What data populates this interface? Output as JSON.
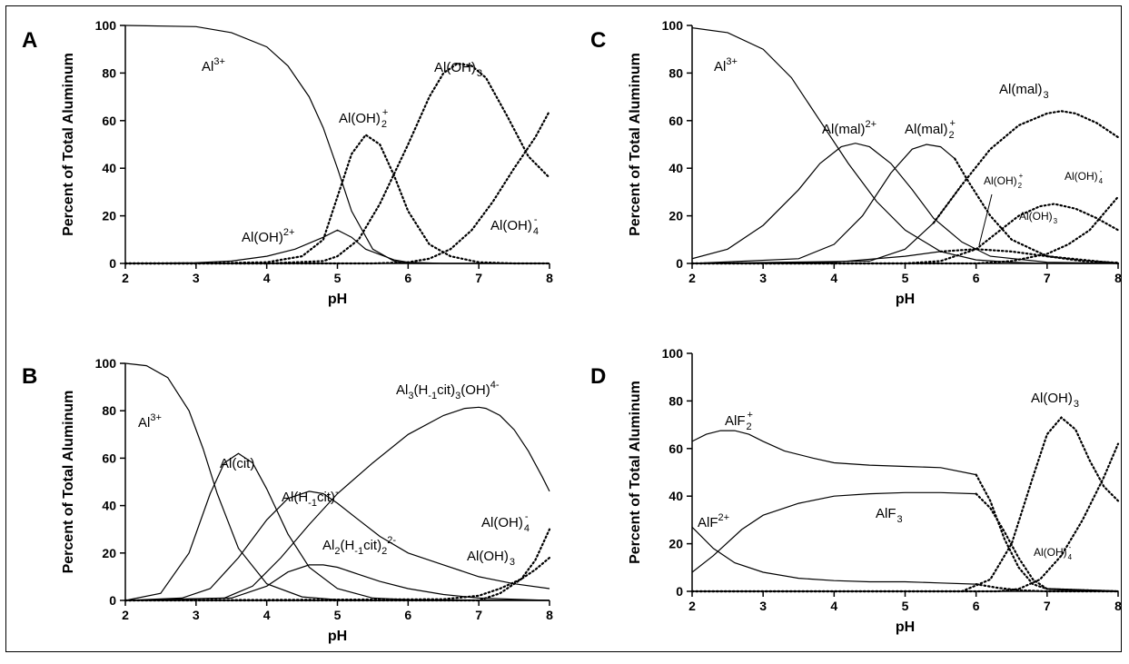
{
  "chart_data": [
    {
      "panel": "A",
      "type": "line",
      "xlabel": "pH",
      "ylabel": "Percent of Total Aluminum",
      "xlim": [
        2,
        8
      ],
      "ylim": [
        0,
        100
      ],
      "xticks": [
        "2",
        "3",
        "4",
        "5",
        "6",
        "7",
        "8"
      ],
      "yticks": [
        "0",
        "20",
        "40",
        "60",
        "80",
        "100"
      ],
      "series": [
        {
          "key": "al3",
          "x": [
            2,
            3,
            3.5,
            4,
            4.3,
            4.6,
            4.8,
            5,
            5.2,
            5.5,
            5.8,
            6,
            6.5,
            7,
            8
          ],
          "y": [
            100,
            99.5,
            97,
            91,
            83,
            70,
            57,
            40,
            22,
            6,
            1,
            0,
            0,
            0,
            0
          ],
          "style": "solid"
        },
        {
          "key": "aloh2",
          "x": [
            2,
            3,
            3.5,
            4,
            4.4,
            4.8,
            5,
            5.2,
            5.4,
            5.8,
            6,
            6.5,
            7,
            8
          ],
          "y": [
            0,
            0.3,
            1,
            3,
            6,
            11,
            14,
            11,
            6,
            1.5,
            0.5,
            0,
            0,
            0
          ],
          "style": "solid"
        },
        {
          "key": "alohp",
          "x": [
            2,
            3,
            4,
            4.5,
            4.8,
            5,
            5.2,
            5.4,
            5.6,
            5.8,
            6,
            6.3,
            6.6,
            7,
            7.5,
            8
          ],
          "y": [
            0,
            0,
            0.5,
            3,
            10,
            28,
            46,
            54,
            50,
            37,
            22,
            8,
            3,
            0.5,
            0,
            0
          ],
          "style": "dotted"
        },
        {
          "key": "aloh3",
          "x": [
            2,
            4,
            4.8,
            5,
            5.3,
            5.6,
            6,
            6.3,
            6.5,
            6.7,
            6.9,
            7.1,
            7.4,
            7.7,
            8
          ],
          "y": [
            0,
            0,
            1,
            3,
            10,
            25,
            50,
            70,
            80,
            84,
            83,
            78,
            62,
            45,
            36
          ],
          "style": "dotted"
        },
        {
          "key": "aloh4",
          "x": [
            2,
            5.5,
            6,
            6.3,
            6.6,
            6.9,
            7.2,
            7.5,
            7.8,
            8
          ],
          "y": [
            0,
            0,
            0.5,
            2,
            6,
            14,
            26,
            40,
            53,
            64
          ],
          "style": "dotted"
        }
      ],
      "labels": {
        "al3": "Al",
        "al3_sup": "3+",
        "aloh3": "Al(OH)",
        "aloh3_sub": "3",
        "alohp": "Al(OH)",
        "alohp_sub": "2",
        "alohp_sup": "+",
        "aloh2": "Al(OH)",
        "aloh2_sup": "2+",
        "aloh4": "Al(OH)",
        "aloh4_sub": "4",
        "aloh4_sup": "-"
      }
    },
    {
      "panel": "B",
      "type": "line",
      "xlabel": "pH",
      "ylabel": "Percent of Total Aluminum",
      "xlim": [
        2,
        8
      ],
      "ylim": [
        0,
        100
      ],
      "xticks": [
        "2",
        "3",
        "4",
        "5",
        "6",
        "7",
        "8"
      ],
      "yticks": [
        "0",
        "20",
        "40",
        "60",
        "80",
        "100"
      ],
      "series": [
        {
          "key": "al3",
          "x": [
            2,
            2.3,
            2.6,
            2.9,
            3.1,
            3.3,
            3.6,
            4,
            4.5,
            5,
            5.5,
            8
          ],
          "y": [
            100,
            99,
            94,
            80,
            64,
            45,
            22,
            7,
            1.5,
            0.3,
            0,
            0
          ],
          "style": "solid"
        },
        {
          "key": "alcit",
          "x": [
            2,
            2.5,
            2.9,
            3.2,
            3.4,
            3.6,
            3.8,
            4,
            4.3,
            4.6,
            5,
            5.5,
            6,
            8
          ],
          "y": [
            0,
            3,
            20,
            45,
            58,
            62,
            58,
            47,
            28,
            14,
            5,
            1,
            0.3,
            0
          ],
          "style": "solid"
        },
        {
          "key": "alhcit",
          "x": [
            2,
            2.8,
            3.2,
            3.6,
            4,
            4.3,
            4.6,
            4.8,
            5,
            5.3,
            5.6,
            6,
            6.5,
            7,
            7.5,
            8
          ],
          "y": [
            0,
            1,
            5,
            18,
            34,
            43,
            46,
            45,
            41,
            34,
            27,
            20,
            15,
            10,
            7,
            5
          ],
          "style": "solid"
        },
        {
          "key": "al2hcit2",
          "x": [
            2,
            3.5,
            4,
            4.3,
            4.6,
            4.8,
            5,
            5.3,
            5.6,
            6,
            6.5,
            7,
            7.5,
            8
          ],
          "y": [
            0,
            1,
            6,
            12,
            15,
            15,
            14,
            11,
            8,
            5,
            2.5,
            1,
            0.5,
            0
          ],
          "style": "solid"
        },
        {
          "key": "al3hcit3",
          "x": [
            2,
            3.4,
            3.8,
            4.2,
            4.6,
            5,
            5.5,
            6,
            6.5,
            6.8,
            7,
            7.1,
            7.3,
            7.5,
            7.7,
            7.9,
            8
          ],
          "y": [
            0,
            1,
            6,
            18,
            32,
            45,
            58,
            70,
            78,
            81,
            81.5,
            81,
            78,
            72,
            63,
            52,
            46
          ],
          "style": "solid"
        },
        {
          "key": "aloh4",
          "x": [
            2,
            7,
            7.3,
            7.6,
            7.8,
            8
          ],
          "y": [
            0,
            0,
            3,
            9,
            17,
            30
          ],
          "style": "dotted"
        },
        {
          "key": "aloh3",
          "x": [
            2,
            6.5,
            7,
            7.3,
            7.6,
            7.8,
            8
          ],
          "y": [
            0,
            0.5,
            2,
            5,
            9,
            13,
            18
          ],
          "style": "dotted"
        }
      ],
      "labels": {
        "al3": "Al",
        "al3_sup": "3+",
        "alcit": "Al(cit)",
        "alhcit": "Al(H",
        "alhcit_sub": "-1",
        "alhcit_tail": "cit)",
        "alhcit_sup": "-",
        "al2hcit2": "Al",
        "al2hcit2_sub1": "2",
        "al2hcit2_mid": "(H",
        "al2hcit2_sub2": "-1",
        "al2hcit2_tail": "cit)",
        "al2hcit2_sub3": "2",
        "al2hcit2_sup": "2-",
        "al3hcit3": "Al",
        "al3hcit3_sub1": "3",
        "al3hcit3_mid": "(H",
        "al3hcit3_sub2": "-1",
        "al3hcit3_mid2": "cit)",
        "al3hcit3_sub3": "3",
        "al3hcit3_tail": "(OH)",
        "al3hcit3_sup": "4-",
        "aloh4": "Al(OH)",
        "aloh4_sub": "4",
        "aloh4_sup": "-",
        "aloh3": "Al(OH)",
        "aloh3_sub": "3"
      }
    },
    {
      "panel": "C",
      "type": "line",
      "xlabel": "pH",
      "ylabel": "Percent of Total Aluminum",
      "xlim": [
        2,
        8
      ],
      "ylim": [
        0,
        100
      ],
      "xticks": [
        "2",
        "3",
        "4",
        "5",
        "6",
        "7",
        "8"
      ],
      "yticks": [
        "0",
        "20",
        "40",
        "60",
        "80",
        "100"
      ],
      "series": [
        {
          "key": "al3",
          "x": [
            2,
            2.5,
            3,
            3.4,
            3.8,
            4.2,
            4.6,
            5,
            5.5,
            6,
            6.5,
            7,
            8
          ],
          "y": [
            99,
            97,
            90,
            78,
            60,
            42,
            26,
            14,
            5,
            1.5,
            0.5,
            0,
            0
          ],
          "style": "solid"
        },
        {
          "key": "almal",
          "x": [
            2,
            2.5,
            3,
            3.5,
            3.8,
            4.1,
            4.3,
            4.5,
            4.8,
            5.1,
            5.4,
            5.8,
            6.2,
            7,
            8
          ],
          "y": [
            2,
            6,
            16,
            31,
            42,
            49,
            50.5,
            49,
            42,
            31,
            19,
            9,
            3,
            0.5,
            0
          ],
          "style": "solid"
        },
        {
          "key": "almal2",
          "x": [
            2,
            3.5,
            4,
            4.4,
            4.8,
            5.1,
            5.3,
            5.5,
            5.7,
            5.9,
            6.2,
            6.5,
            7,
            8
          ],
          "y": [
            0,
            2,
            8,
            20,
            38,
            48,
            50,
            49,
            44,
            34,
            20,
            10,
            3,
            0
          ],
          "style": "dotted_tail",
          "solid_until": 5.8
        },
        {
          "key": "almal3",
          "x": [
            2,
            4.5,
            5,
            5.4,
            5.8,
            6.2,
            6.6,
            7,
            7.2,
            7.4,
            7.7,
            8
          ],
          "y": [
            0,
            1,
            6,
            17,
            33,
            48,
            58,
            63,
            64,
            63,
            59,
            53
          ],
          "style": "dotted_tail",
          "solid_until": 5.8
        },
        {
          "key": "alohp",
          "x": [
            2,
            4,
            5,
            5.5,
            6,
            6.5,
            7,
            7.5,
            8
          ],
          "y": [
            0,
            0.5,
            3,
            5,
            6,
            5,
            3,
            1,
            0.3
          ],
          "style": "dotted_tail",
          "solid_until": 5.8
        },
        {
          "key": "aloh3",
          "x": [
            2,
            5,
            5.5,
            6,
            6.3,
            6.6,
            6.9,
            7.1,
            7.4,
            7.7,
            8
          ],
          "y": [
            0,
            0,
            1,
            6,
            13,
            20,
            24,
            25,
            23,
            19,
            14
          ],
          "style": "dotted"
        },
        {
          "key": "aloh4",
          "x": [
            2,
            6,
            6.5,
            7,
            7.3,
            7.6,
            8
          ],
          "y": [
            0,
            0,
            1,
            4,
            8,
            14,
            28
          ],
          "style": "dotted"
        }
      ],
      "labels": {
        "al3": "Al",
        "al3_sup": "3+",
        "almal": "Al(mal)",
        "almal_sup": "2+",
        "almal2": "Al(mal)",
        "almal2_sub": "2",
        "almal2_sup": "+",
        "almal3": "Al(mal)",
        "almal3_sub": "3",
        "alohp": "Al(OH)",
        "alohp_sub": "2",
        "alohp_sup": "+",
        "aloh4": "Al(OH)",
        "aloh4_sub": "4",
        "aloh4_sup": "-",
        "aloh3": "Al(OH)",
        "aloh3_sub": "3"
      }
    },
    {
      "panel": "D",
      "type": "line",
      "xlabel": "pH",
      "ylabel": "Percent of Total Aluminum",
      "xlim": [
        2,
        8
      ],
      "ylim": [
        0,
        100
      ],
      "xticks": [
        "2",
        "3",
        "4",
        "5",
        "6",
        "7",
        "8"
      ],
      "yticks": [
        "0",
        "20",
        "40",
        "60",
        "80",
        "100"
      ],
      "series": [
        {
          "key": "alf2",
          "x": [
            2,
            2.2,
            2.4,
            2.6,
            2.8,
            3,
            3.3,
            3.7,
            4,
            4.5,
            5,
            5.5,
            6,
            6.2,
            6.4,
            6.6,
            6.8,
            7,
            8
          ],
          "y": [
            63,
            66,
            67.5,
            67.5,
            66,
            63,
            59,
            56,
            54,
            53,
            52.5,
            52,
            49,
            38,
            22,
            10,
            3,
            1,
            0
          ],
          "style": "dotted_tail",
          "solid_until": 6.05
        },
        {
          "key": "alf3",
          "x": [
            2,
            2.3,
            2.7,
            3,
            3.5,
            4,
            4.5,
            5,
            5.5,
            6,
            6.2,
            6.4,
            6.6,
            6.8,
            7,
            8
          ],
          "y": [
            8,
            15,
            26,
            32,
            37,
            40,
            41,
            41.5,
            41.5,
            41,
            35,
            25,
            14,
            5,
            1,
            0
          ],
          "style": "dotted_tail",
          "solid_until": 6.05
        },
        {
          "key": "alf2p",
          "x": [
            2,
            2.3,
            2.6,
            3,
            3.5,
            4,
            4.5,
            5,
            5.5,
            6,
            6.3,
            6.6,
            7,
            8
          ],
          "y": [
            27,
            18,
            12,
            8,
            5.5,
            4.5,
            4,
            4,
            3.5,
            3,
            1.5,
            0.5,
            0,
            0
          ],
          "style": "dotted_tail",
          "solid_until": 6.05
        },
        {
          "key": "aloh3",
          "x": [
            2,
            5.8,
            6.2,
            6.5,
            6.8,
            7,
            7.2,
            7.4,
            7.6,
            7.8,
            8
          ],
          "y": [
            0,
            0,
            5,
            20,
            48,
            66,
            73,
            68,
            55,
            44,
            38
          ],
          "style": "dotted"
        },
        {
          "key": "aloh4",
          "x": [
            2,
            6.3,
            6.6,
            6.9,
            7.2,
            7.5,
            7.8,
            8
          ],
          "y": [
            0,
            0,
            1,
            5,
            15,
            30,
            48,
            62
          ],
          "style": "dotted"
        }
      ],
      "labels": {
        "alf2": "AlF",
        "alf2_sub": "2",
        "alf2_sup": "+",
        "alf2p": "AlF",
        "alf2p_sup": "2+",
        "alf3": "AlF",
        "alf3_sub": "3",
        "aloh3": "Al(OH)",
        "aloh3_sub": "3",
        "aloh4": "Al(OH)",
        "aloh4_sub": "4",
        "aloh4_sup": "-"
      }
    }
  ]
}
